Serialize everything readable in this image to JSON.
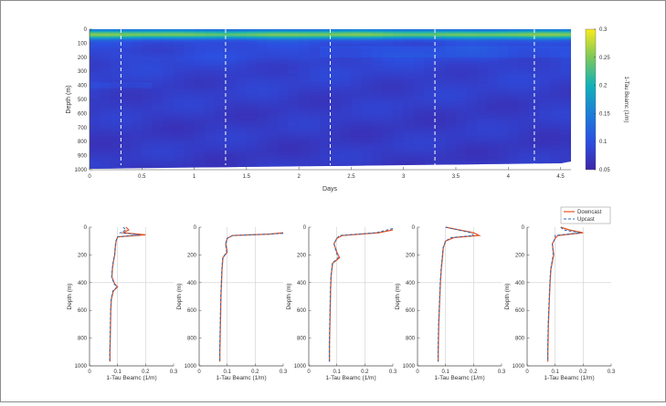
{
  "chart_data": [
    {
      "type": "heatmap",
      "xlabel": "Days",
      "ylabel": "Depth (m)",
      "xlim": [
        0,
        4.6
      ],
      "ylim": [
        1000,
        0
      ],
      "x_ticks": [
        0,
        0.5,
        1,
        1.5,
        2,
        2.5,
        3,
        3.5,
        4,
        4.5
      ],
      "x_tick_labels": [
        "0",
        "0.5",
        "1",
        "1.5",
        "2",
        "2.5",
        "3",
        "3.5",
        "4",
        "4.5"
      ],
      "y_ticks": [
        0,
        100,
        200,
        300,
        400,
        500,
        600,
        700,
        800,
        900,
        1000
      ],
      "y_tick_labels": [
        "0",
        "100",
        "200",
        "300",
        "400",
        "500",
        "600",
        "700",
        "800",
        "900",
        "1000"
      ],
      "colorbar": {
        "label": "1-Tau Beamc (1/m)",
        "range": [
          0.05,
          0.3
        ],
        "ticks": [
          0.05,
          0.1,
          0.15,
          0.2,
          0.25,
          0.3
        ],
        "tick_labels": [
          "0.05",
          "0.1",
          "0.15",
          "0.2",
          "0.25",
          "0.3"
        ]
      },
      "dashed_lines_days": [
        0.3,
        1.3,
        2.3,
        3.3,
        4.25
      ],
      "depth_profile_mean": [
        [
          0,
          0.12
        ],
        [
          20,
          0.2
        ],
        [
          40,
          0.26
        ],
        [
          60,
          0.18
        ],
        [
          80,
          0.11
        ],
        [
          100,
          0.095
        ],
        [
          150,
          0.09
        ],
        [
          200,
          0.092
        ],
        [
          250,
          0.085
        ],
        [
          300,
          0.083
        ],
        [
          400,
          0.08
        ],
        [
          500,
          0.078
        ],
        [
          600,
          0.076
        ],
        [
          700,
          0.075
        ],
        [
          800,
          0.075
        ],
        [
          900,
          0.074
        ],
        [
          1000,
          0.073
        ]
      ]
    },
    {
      "type": "line",
      "panels": 5,
      "xlabel": "1-Tau Beamc (1/m)",
      "ylabel": "Depth (m)",
      "xlim": [
        0,
        0.3
      ],
      "ylim": [
        1000,
        0
      ],
      "x_ticks": [
        0,
        0.1,
        0.2,
        0.3
      ],
      "x_tick_labels": [
        "0",
        "0.1",
        "0.2",
        "0.3"
      ],
      "y_ticks": [
        0,
        200,
        400,
        600,
        800,
        1000
      ],
      "y_tick_labels": [
        "0",
        "200",
        "400",
        "600",
        "800",
        "1000"
      ],
      "legend": {
        "placement": "top-right",
        "entries": [
          "Downcast",
          "Upcast"
        ]
      },
      "series_colors": {
        "Downcast": "#e8501e",
        "Upcast": "#2b6cb8"
      },
      "profiles": [
        {
          "panel": 1,
          "Downcast": [
            [
              0.13,
              0
            ],
            [
              0.14,
              20
            ],
            [
              0.12,
              40
            ],
            [
              0.2,
              55
            ],
            [
              0.1,
              70
            ],
            [
              0.095,
              100
            ],
            [
              0.092,
              150
            ],
            [
              0.09,
              200
            ],
            [
              0.085,
              250
            ],
            [
              0.082,
              300
            ],
            [
              0.08,
              360
            ],
            [
              0.09,
              410
            ],
            [
              0.1,
              430
            ],
            [
              0.085,
              460
            ],
            [
              0.078,
              520
            ],
            [
              0.076,
              600
            ],
            [
              0.075,
              700
            ],
            [
              0.074,
              800
            ],
            [
              0.073,
              900
            ],
            [
              0.073,
              970
            ]
          ],
          "Upcast": [
            [
              0.12,
              0
            ],
            [
              0.13,
              20
            ],
            [
              0.11,
              40
            ],
            [
              0.18,
              55
            ],
            [
              0.1,
              70
            ],
            [
              0.094,
              100
            ],
            [
              0.091,
              150
            ],
            [
              0.089,
              200
            ],
            [
              0.084,
              250
            ],
            [
              0.081,
              300
            ],
            [
              0.079,
              360
            ],
            [
              0.088,
              410
            ],
            [
              0.098,
              430
            ],
            [
              0.083,
              460
            ],
            [
              0.077,
              520
            ],
            [
              0.075,
              600
            ],
            [
              0.074,
              700
            ],
            [
              0.073,
              800
            ],
            [
              0.072,
              900
            ],
            [
              0.072,
              970
            ]
          ]
        },
        {
          "panel": 2,
          "Downcast": [
            [
              0.3,
              40
            ],
            [
              0.25,
              50
            ],
            [
              0.12,
              60
            ],
            [
              0.1,
              80
            ],
            [
              0.095,
              120
            ],
            [
              0.1,
              180
            ],
            [
              0.085,
              220
            ],
            [
              0.082,
              300
            ],
            [
              0.08,
              400
            ],
            [
              0.078,
              500
            ],
            [
              0.077,
              600
            ],
            [
              0.076,
              700
            ],
            [
              0.075,
              800
            ],
            [
              0.074,
              900
            ],
            [
              0.074,
              970
            ]
          ],
          "Upcast": [
            [
              0.33,
              45
            ],
            [
              0.25,
              50
            ],
            [
              0.12,
              60
            ],
            [
              0.1,
              80
            ],
            [
              0.094,
              120
            ],
            [
              0.098,
              180
            ],
            [
              0.084,
              220
            ],
            [
              0.081,
              300
            ],
            [
              0.079,
              400
            ],
            [
              0.077,
              500
            ],
            [
              0.076,
              600
            ],
            [
              0.075,
              700
            ],
            [
              0.074,
              800
            ],
            [
              0.073,
              900
            ],
            [
              0.073,
              970
            ]
          ]
        },
        {
          "panel": 3,
          "Downcast": [
            [
              0.3,
              20
            ],
            [
              0.25,
              40
            ],
            [
              0.12,
              60
            ],
            [
              0.1,
              80
            ],
            [
              0.09,
              120
            ],
            [
              0.1,
              180
            ],
            [
              0.11,
              220
            ],
            [
              0.085,
              260
            ],
            [
              0.08,
              350
            ],
            [
              0.078,
              450
            ],
            [
              0.077,
              550
            ],
            [
              0.076,
              650
            ],
            [
              0.075,
              750
            ],
            [
              0.074,
              850
            ],
            [
              0.074,
              970
            ]
          ],
          "Upcast": [
            [
              0.3,
              10
            ],
            [
              0.24,
              40
            ],
            [
              0.11,
              60
            ],
            [
              0.1,
              80
            ],
            [
              0.09,
              120
            ],
            [
              0.098,
              180
            ],
            [
              0.105,
              220
            ],
            [
              0.084,
              260
            ],
            [
              0.079,
              350
            ],
            [
              0.077,
              450
            ],
            [
              0.076,
              550
            ],
            [
              0.075,
              650
            ],
            [
              0.074,
              750
            ],
            [
              0.073,
              850
            ],
            [
              0.073,
              970
            ]
          ]
        },
        {
          "panel": 4,
          "Downcast": [
            [
              0.1,
              0
            ],
            [
              0.2,
              40
            ],
            [
              0.22,
              60
            ],
            [
              0.13,
              75
            ],
            [
              0.1,
              100
            ],
            [
              0.092,
              150
            ],
            [
              0.09,
              200
            ],
            [
              0.085,
              300
            ],
            [
              0.082,
              400
            ],
            [
              0.08,
              500
            ],
            [
              0.078,
              600
            ],
            [
              0.076,
              700
            ],
            [
              0.075,
              800
            ],
            [
              0.074,
              900
            ],
            [
              0.074,
              970
            ]
          ],
          "Upcast": [
            [
              0.1,
              0
            ],
            [
              0.19,
              40
            ],
            [
              0.2,
              60
            ],
            [
              0.12,
              75
            ],
            [
              0.1,
              100
            ],
            [
              0.091,
              150
            ],
            [
              0.089,
              200
            ],
            [
              0.084,
              300
            ],
            [
              0.081,
              400
            ],
            [
              0.079,
              500
            ],
            [
              0.077,
              600
            ],
            [
              0.075,
              700
            ],
            [
              0.074,
              800
            ],
            [
              0.073,
              900
            ],
            [
              0.073,
              970
            ]
          ]
        },
        {
          "panel": 5,
          "Downcast": [
            [
              0.12,
              0
            ],
            [
              0.15,
              20
            ],
            [
              0.2,
              40
            ],
            [
              0.11,
              60
            ],
            [
              0.1,
              80
            ],
            [
              0.09,
              120
            ],
            [
              0.095,
              200
            ],
            [
              0.085,
              300
            ],
            [
              0.082,
              400
            ],
            [
              0.08,
              500
            ],
            [
              0.078,
              600
            ],
            [
              0.076,
              700
            ],
            [
              0.075,
              800
            ],
            [
              0.074,
              900
            ],
            [
              0.074,
              970
            ]
          ],
          "Upcast": [
            [
              0.12,
              0
            ],
            [
              0.13,
              20
            ],
            [
              0.19,
              40
            ],
            [
              0.1,
              60
            ],
            [
              0.1,
              80
            ],
            [
              0.09,
              120
            ],
            [
              0.093,
              200
            ],
            [
              0.084,
              300
            ],
            [
              0.081,
              400
            ],
            [
              0.079,
              500
            ],
            [
              0.077,
              600
            ],
            [
              0.075,
              700
            ],
            [
              0.074,
              800
            ],
            [
              0.073,
              900
            ],
            [
              0.073,
              970
            ]
          ]
        }
      ]
    }
  ]
}
